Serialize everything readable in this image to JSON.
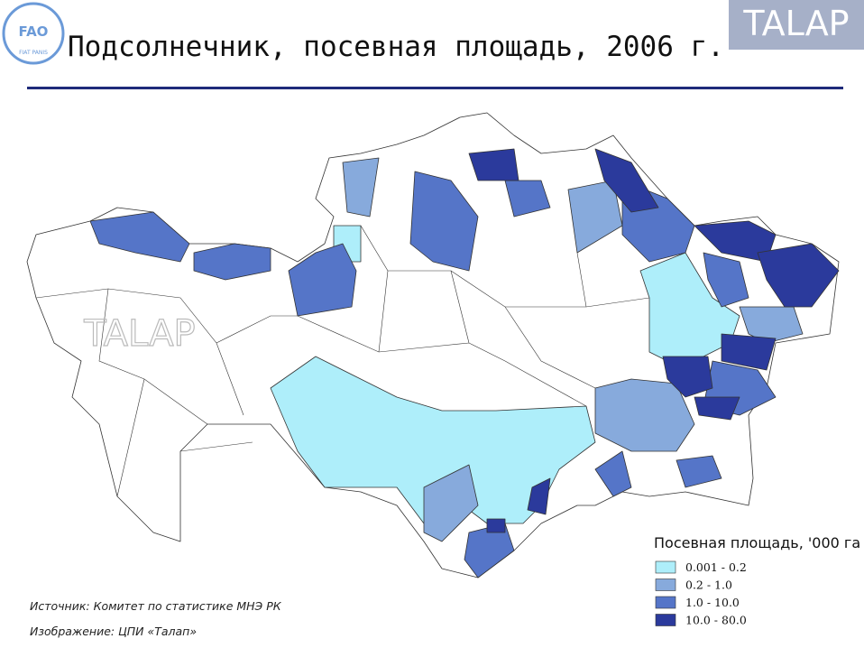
{
  "header": {
    "title": "Подсолнечник, посевная площадь, 2006 г.",
    "logo": "TALAP",
    "fao_logo": {
      "name": "FAO",
      "motto": "FIAT PANIS"
    }
  },
  "map": {
    "watermark": "TALAP",
    "legend": {
      "title": "Посевная площадь, '000 га",
      "items": [
        {
          "label": "0.001 - 0.2",
          "color": "#aeeefa"
        },
        {
          "label": "0.2 - 1.0",
          "color": "#87aadc"
        },
        {
          "label": "1.0 - 10.0",
          "color": "#5575c8"
        },
        {
          "label": "10.0 - 80.0",
          "color": "#2b3a9c"
        }
      ]
    }
  },
  "footer": {
    "source": "Источник: Комитет по статистике МНЭ РК",
    "image": "Изображение: ЦПИ «Талап»"
  }
}
